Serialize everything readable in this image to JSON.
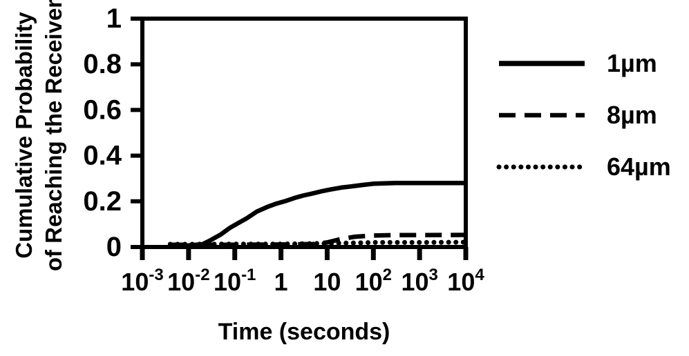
{
  "colors": {
    "ink": "#000000",
    "background": "#ffffff"
  },
  "chart_data": {
    "type": "line",
    "title": "",
    "xlabel": "Time (seconds)",
    "ylabel": "Cumulative Probability of Reaching the Receiver",
    "ylabel_lines": [
      "Cumulative Probability",
      "of Reaching the Receiver"
    ],
    "x_scale": "log",
    "xlim": [
      0.001,
      10000
    ],
    "ylim": [
      0,
      1
    ],
    "grid": false,
    "legend_position": "right-outside",
    "x_ticks": [
      {
        "exp": -3,
        "base": "10",
        "sup": "-3"
      },
      {
        "exp": -2,
        "base": "10",
        "sup": "-2"
      },
      {
        "exp": -1,
        "base": "10",
        "sup": "-1"
      },
      {
        "exp": 0,
        "base": "1",
        "sup": ""
      },
      {
        "exp": 1,
        "base": "10",
        "sup": ""
      },
      {
        "exp": 2,
        "base": "10",
        "sup": "2"
      },
      {
        "exp": 3,
        "base": "10",
        "sup": "3"
      },
      {
        "exp": 4,
        "base": "10",
        "sup": "4"
      }
    ],
    "y_ticks": [
      {
        "value": 0,
        "label": "0"
      },
      {
        "value": 0.2,
        "label": "0.2"
      },
      {
        "value": 0.4,
        "label": "0.4"
      },
      {
        "value": 0.6,
        "label": "0.6"
      },
      {
        "value": 0.8,
        "label": "0.8"
      },
      {
        "value": 1,
        "label": "1"
      }
    ],
    "series": [
      {
        "name": "1µm",
        "line_style": "solid",
        "dash": "none",
        "cap": "butt",
        "width": 6.5,
        "points": [
          [
            0.005,
            0.005
          ],
          [
            0.01,
            0.007
          ],
          [
            0.02,
            0.012
          ],
          [
            0.03,
            0.03
          ],
          [
            0.05,
            0.055
          ],
          [
            0.08,
            0.085
          ],
          [
            0.12,
            0.105
          ],
          [
            0.18,
            0.125
          ],
          [
            0.3,
            0.155
          ],
          [
            0.5,
            0.175
          ],
          [
            0.8,
            0.19
          ],
          [
            1.2,
            0.2
          ],
          [
            2,
            0.215
          ],
          [
            3,
            0.225
          ],
          [
            5,
            0.235
          ],
          [
            8,
            0.245
          ],
          [
            12,
            0.252
          ],
          [
            20,
            0.26
          ],
          [
            35,
            0.266
          ],
          [
            60,
            0.272
          ],
          [
            100,
            0.277
          ],
          [
            300,
            0.28
          ],
          [
            1000,
            0.28
          ],
          [
            10000,
            0.28
          ]
        ]
      },
      {
        "name": "8µm",
        "line_style": "dashed",
        "dash": "24 13",
        "cap": "butt",
        "width": 6.5,
        "points": [
          [
            0.004,
            0.01
          ],
          [
            0.01,
            0.01
          ],
          [
            0.1,
            0.01
          ],
          [
            1,
            0.011
          ],
          [
            5,
            0.013
          ],
          [
            10,
            0.02
          ],
          [
            20,
            0.035
          ],
          [
            40,
            0.045
          ],
          [
            100,
            0.05
          ],
          [
            300,
            0.052
          ],
          [
            1000,
            0.052
          ],
          [
            10000,
            0.053
          ]
        ]
      },
      {
        "name": "64µm",
        "line_style": "dotted",
        "dash": "0.1 10.5",
        "cap": "round",
        "width": 7,
        "points": [
          [
            0.004,
            0.012
          ],
          [
            0.01,
            0.012
          ],
          [
            0.1,
            0.013
          ],
          [
            1,
            0.013
          ],
          [
            10,
            0.016
          ],
          [
            50,
            0.018
          ],
          [
            100,
            0.02
          ],
          [
            1000,
            0.02
          ],
          [
            10000,
            0.021
          ]
        ]
      }
    ]
  }
}
